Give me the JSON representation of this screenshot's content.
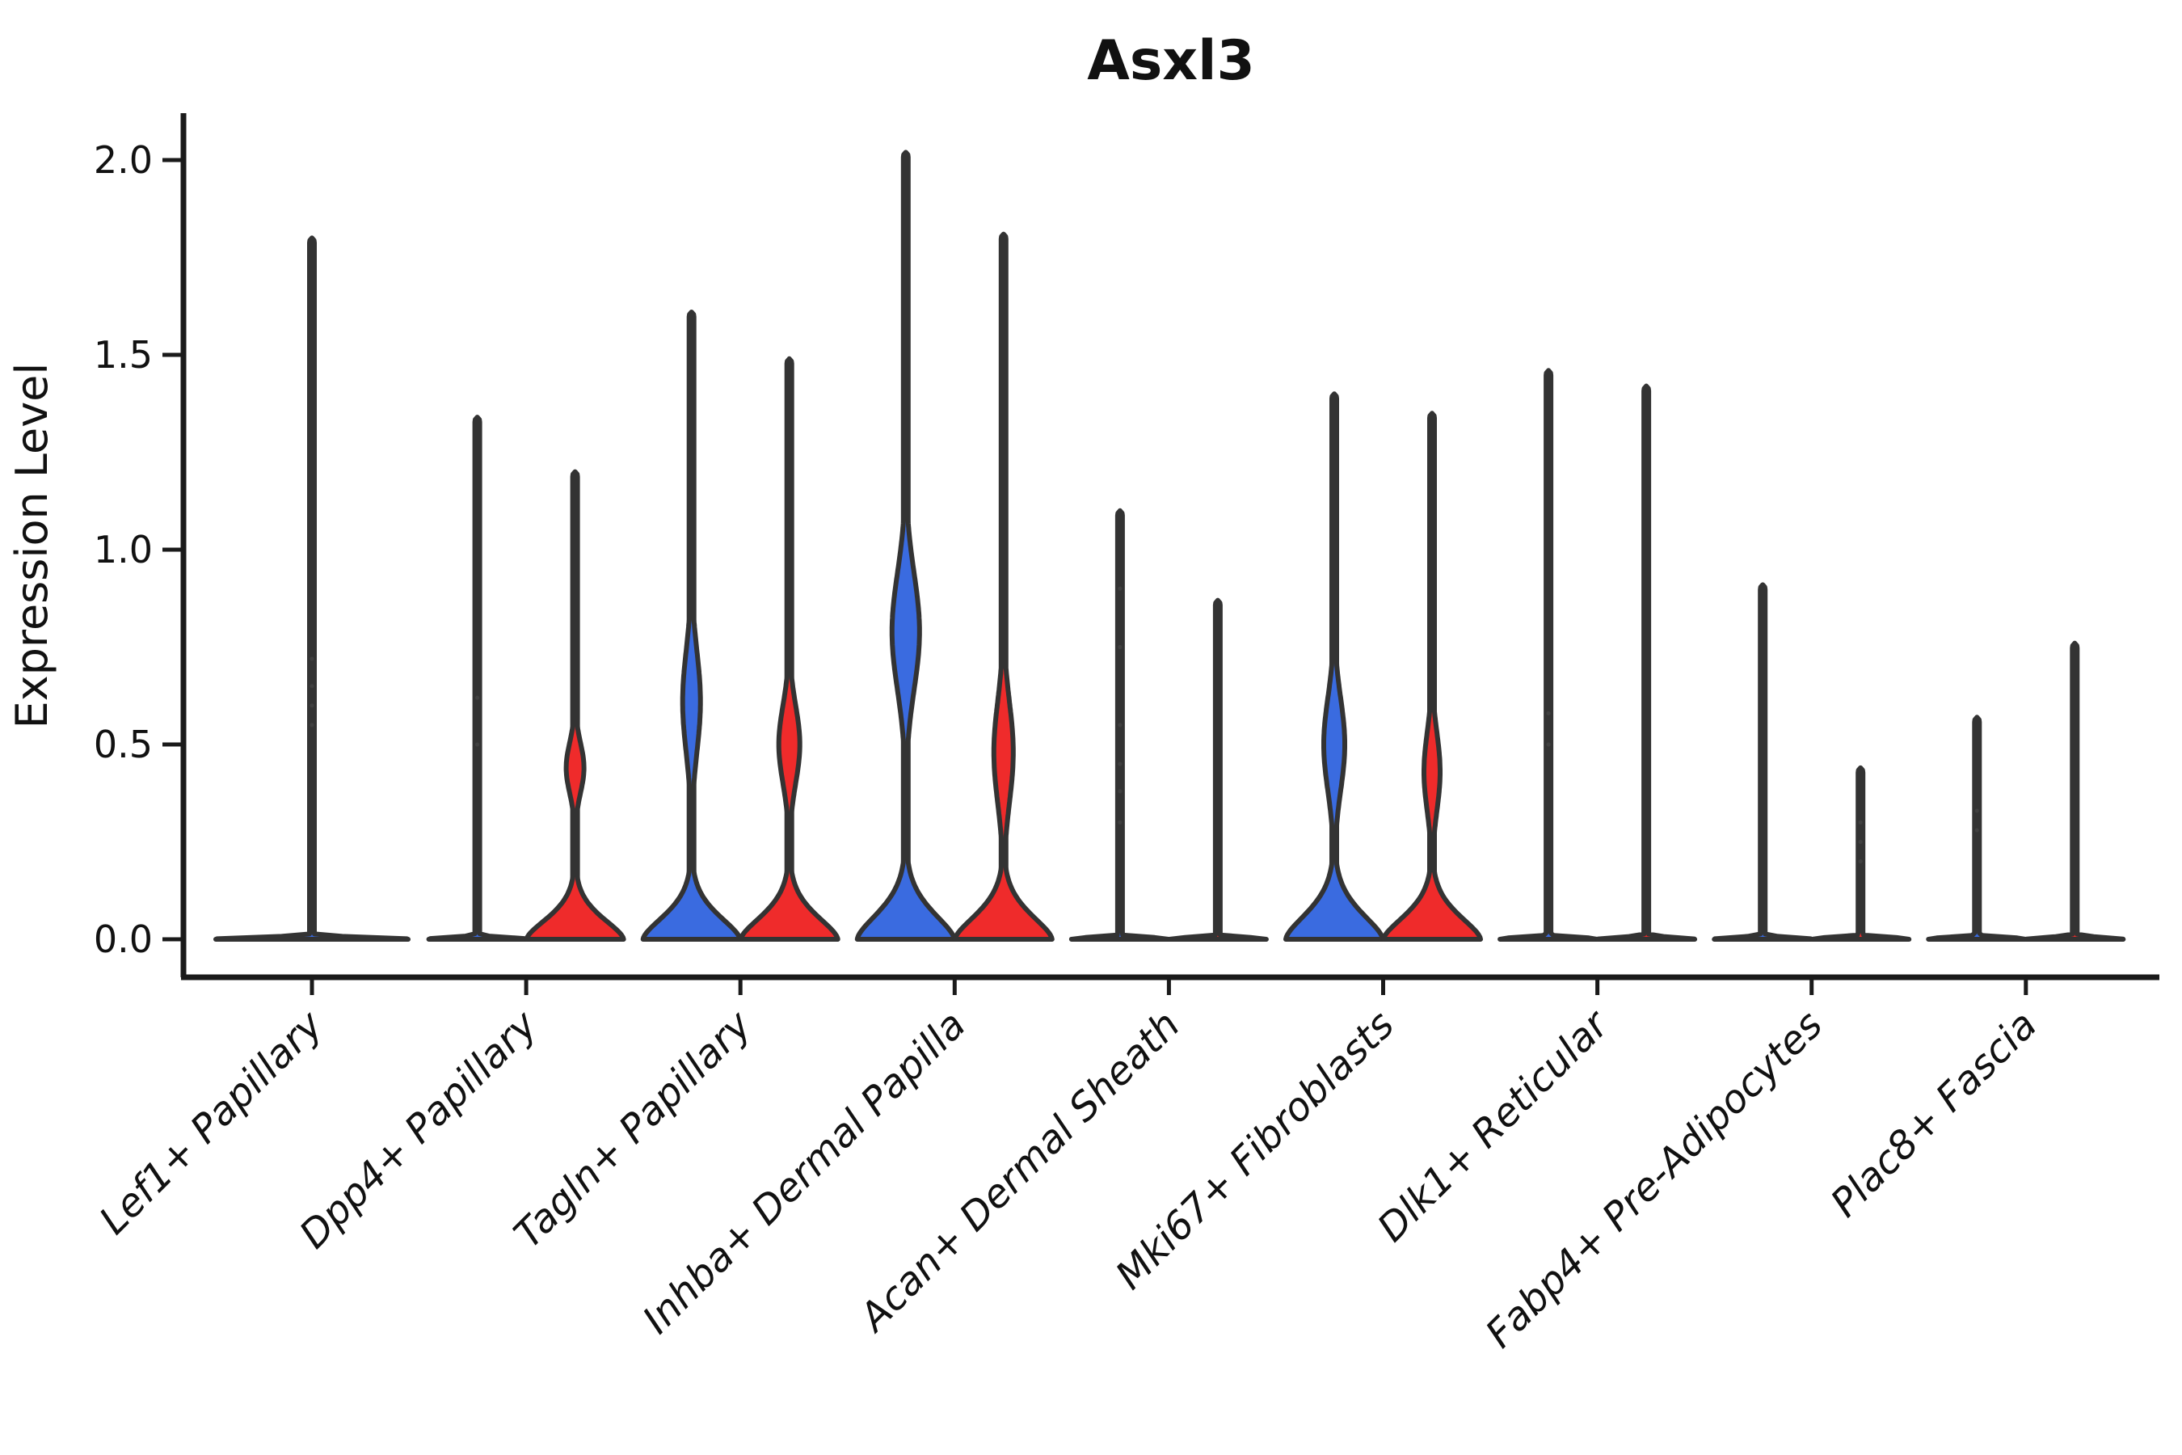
{
  "chart_data": {
    "type": "violin",
    "title": "Asxl3",
    "ylabel": "Expression Level",
    "xlabel": "",
    "grid": false,
    "legend": "none",
    "yticks": [
      {
        "value": 0.0,
        "label": "0.0"
      },
      {
        "value": 0.5,
        "label": "0.5"
      },
      {
        "value": 1.0,
        "label": "1.0"
      },
      {
        "value": 1.5,
        "label": "1.5"
      },
      {
        "value": 2.0,
        "label": "2.0"
      }
    ],
    "ylim": [
      -0.1,
      2.12
    ],
    "colors": {
      "blue": "#3A6BE0",
      "red": "#EF2B2B",
      "outline": "#333333",
      "axis": "#1a1a1a",
      "dot": "#4a4a4a"
    },
    "categories": [
      "Lef1+ Papillary",
      "Dpp4+ Papillary",
      "Tagln+ Papillary",
      "Inhba+ Dermal Papilla",
      "Acan+ Dermal Sheath",
      "Mki67+ Fibroblasts",
      "Dlk1+ Reticular",
      "Fabp4+ Pre-Adipocytes",
      "Plac8+ Fascia"
    ],
    "violins": [
      {
        "cat": 0,
        "side": "center",
        "color": "blue",
        "max": 1.8,
        "base": "flat",
        "bellS": 38,
        "bulge": null,
        "dots": [
          0.55,
          0.6,
          0.65,
          0.72
        ]
      },
      {
        "cat": 1,
        "side": "left",
        "color": "blue",
        "max": 1.34,
        "base": "flat",
        "bellS": 38,
        "bulge": null,
        "dots": [
          0.5,
          0.62
        ]
      },
      {
        "cat": 1,
        "side": "right",
        "color": "red",
        "max": 1.2,
        "base": "bell",
        "bellS": 38,
        "bulge": {
          "peak": 0.44,
          "sigma": 0.065,
          "halfwidth": 11
        },
        "dots": []
      },
      {
        "cat": 2,
        "side": "left",
        "color": "blue",
        "max": 1.61,
        "base": "bell",
        "bellS": 42,
        "bulge": {
          "peak": 0.61,
          "sigma": 0.13,
          "halfwidth": 11
        },
        "dots": []
      },
      {
        "cat": 2,
        "side": "right",
        "color": "red",
        "max": 1.49,
        "base": "bell",
        "bellS": 42,
        "bulge": {
          "peak": 0.5,
          "sigma": 0.1,
          "halfwidth": 13
        },
        "dots": []
      },
      {
        "cat": 3,
        "side": "left",
        "color": "blue",
        "max": 2.02,
        "base": "bell",
        "bellS": 48,
        "bulge": {
          "peak": 0.79,
          "sigma": 0.15,
          "halfwidth": 17
        },
        "dots": []
      },
      {
        "cat": 3,
        "side": "right",
        "color": "red",
        "max": 1.81,
        "base": "bell",
        "bellS": 44,
        "bulge": {
          "peak": 0.48,
          "sigma": 0.13,
          "halfwidth": 12
        },
        "dots": []
      },
      {
        "cat": 4,
        "side": "left",
        "color": "blue",
        "max": 1.1,
        "base": "flat",
        "bellS": 38,
        "bulge": null,
        "dots": [
          0.3,
          0.38,
          0.45,
          0.55,
          0.75,
          0.9
        ]
      },
      {
        "cat": 4,
        "side": "right",
        "color": "red",
        "max": 0.87,
        "base": "flat",
        "bellS": 38,
        "bulge": null,
        "dots": []
      },
      {
        "cat": 5,
        "side": "left",
        "color": "blue",
        "max": 1.4,
        "base": "bell",
        "bellS": 47,
        "bulge": {
          "peak": 0.5,
          "sigma": 0.12,
          "halfwidth": 13
        },
        "dots": []
      },
      {
        "cat": 5,
        "side": "right",
        "color": "red",
        "max": 1.35,
        "base": "bell",
        "bellS": 42,
        "bulge": {
          "peak": 0.43,
          "sigma": 0.1,
          "halfwidth": 10
        },
        "dots": []
      },
      {
        "cat": 6,
        "side": "left",
        "color": "blue",
        "max": 1.46,
        "base": "flat",
        "bellS": 38,
        "bulge": null,
        "dots": [
          0.5,
          0.58
        ]
      },
      {
        "cat": 6,
        "side": "right",
        "color": "red",
        "max": 1.42,
        "base": "flat",
        "bellS": 38,
        "bulge": null,
        "dots": []
      },
      {
        "cat": 7,
        "side": "left",
        "color": "blue",
        "max": 0.91,
        "base": "flat",
        "bellS": 38,
        "bulge": null,
        "dots": []
      },
      {
        "cat": 7,
        "side": "right",
        "color": "red",
        "max": 0.44,
        "base": "flat",
        "bellS": 38,
        "bulge": null,
        "dots": [
          0.2,
          0.25,
          0.3
        ]
      },
      {
        "cat": 8,
        "side": "left",
        "color": "blue",
        "max": 0.57,
        "base": "flat",
        "bellS": 38,
        "bulge": null,
        "dots": [
          0.28,
          0.33
        ]
      },
      {
        "cat": 8,
        "side": "right",
        "color": "red",
        "max": 0.76,
        "base": "flat",
        "bellS": 38,
        "bulge": null,
        "dots": []
      }
    ]
  }
}
